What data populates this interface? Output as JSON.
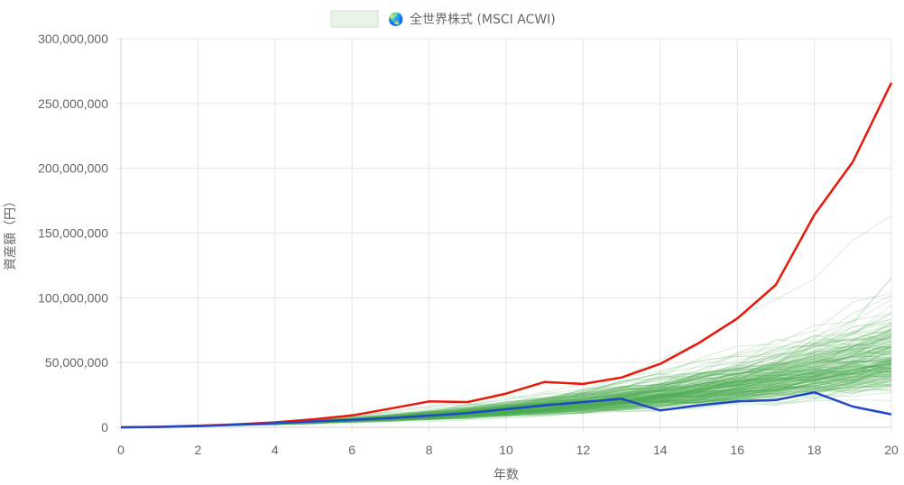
{
  "chart_data": {
    "type": "line",
    "xlabel": "年数",
    "ylabel": "資産額（円）",
    "xlim": [
      0,
      20
    ],
    "ylim": [
      0,
      300000000
    ],
    "x_ticks": [
      "0",
      "2",
      "4",
      "6",
      "8",
      "10",
      "12",
      "14",
      "16",
      "18",
      "20"
    ],
    "y_ticks": [
      "0",
      "50,000,000",
      "100,000,000",
      "150,000,000",
      "200,000,000",
      "250,000,000",
      "300,000,000"
    ],
    "grid": true,
    "legend": {
      "position": "top",
      "icon": "globe-icon",
      "icon_glyph": "🌏",
      "label": "全世界株式 (MSCI ACWI)"
    },
    "x": [
      0,
      1,
      2,
      3,
      4,
      5,
      6,
      7,
      8,
      9,
      10,
      11,
      12,
      13,
      14,
      15,
      16,
      17,
      18,
      19,
      20
    ],
    "series": [
      {
        "role": "best-case",
        "color": "#e8190b",
        "values": [
          0,
          400000,
          1200000,
          2300000,
          3800000,
          6200000,
          9200000,
          14500000,
          20000000,
          19500000,
          26000000,
          35000000,
          33500000,
          38500000,
          49000000,
          65000000,
          84000000,
          110000000,
          164000000,
          205000000,
          266000000
        ]
      },
      {
        "role": "worst-case",
        "color": "#1e48c8",
        "values": [
          0,
          300000,
          1000000,
          2000000,
          3200000,
          4500000,
          5800000,
          7200000,
          9000000,
          11000000,
          14000000,
          17000000,
          19500000,
          22000000,
          13000000,
          17000000,
          20000000,
          21000000,
          27000000,
          16000000,
          10000000
        ]
      }
    ],
    "simulation_bundle": {
      "color": "#4caf50",
      "path_count": 220,
      "median_start_ratio_year20": 0.22,
      "typical_range_year20": [
        15000000,
        180000000
      ]
    }
  }
}
